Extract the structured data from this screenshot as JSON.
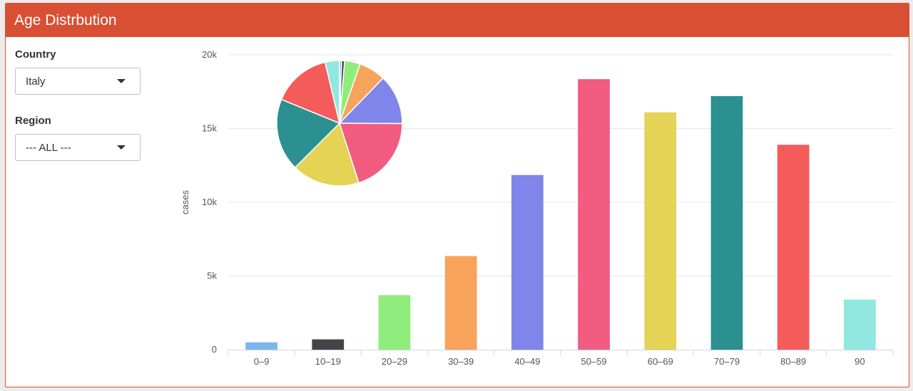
{
  "header": {
    "title": "Age Distrbution"
  },
  "filters": {
    "country": {
      "label": "Country",
      "value": "Italy"
    },
    "region": {
      "label": "Region",
      "value": "--- ALL ---"
    }
  },
  "colors": {
    "header": "#d94f34"
  },
  "chart_data": [
    {
      "type": "bar",
      "title": "",
      "xlabel": "",
      "ylabel": "cases",
      "ylim": [
        0,
        20000
      ],
      "yticks": [
        0,
        5000,
        10000,
        15000,
        20000
      ],
      "ytick_labels": [
        "0",
        "5k",
        "10k",
        "15k",
        "20k"
      ],
      "grid": true,
      "categories": [
        "0–9",
        "10–19",
        "20–29",
        "30–39",
        "40–49",
        "50–59",
        "60–69",
        "70–79",
        "80–89",
        "90"
      ],
      "values": [
        500,
        700,
        3700,
        6350,
        11850,
        18350,
        16100,
        17200,
        13900,
        3400
      ],
      "colors": [
        "#7cb5ec",
        "#434348",
        "#90ed7d",
        "#f7a35c",
        "#8085e9",
        "#f15c80",
        "#e4d354",
        "#2b908f",
        "#f45b5b",
        "#91e8e1"
      ]
    },
    {
      "type": "pie",
      "categories": [
        "0–9",
        "10–19",
        "20–29",
        "30–39",
        "40–49",
        "50–59",
        "60–69",
        "70–79",
        "80–89",
        "90"
      ],
      "values": [
        500,
        700,
        3700,
        6350,
        11850,
        18350,
        16100,
        17200,
        13900,
        3400
      ],
      "colors": [
        "#7cb5ec",
        "#434348",
        "#90ed7d",
        "#f7a35c",
        "#8085e9",
        "#f15c80",
        "#e4d354",
        "#2b908f",
        "#f45b5b",
        "#91e8e1"
      ]
    }
  ]
}
